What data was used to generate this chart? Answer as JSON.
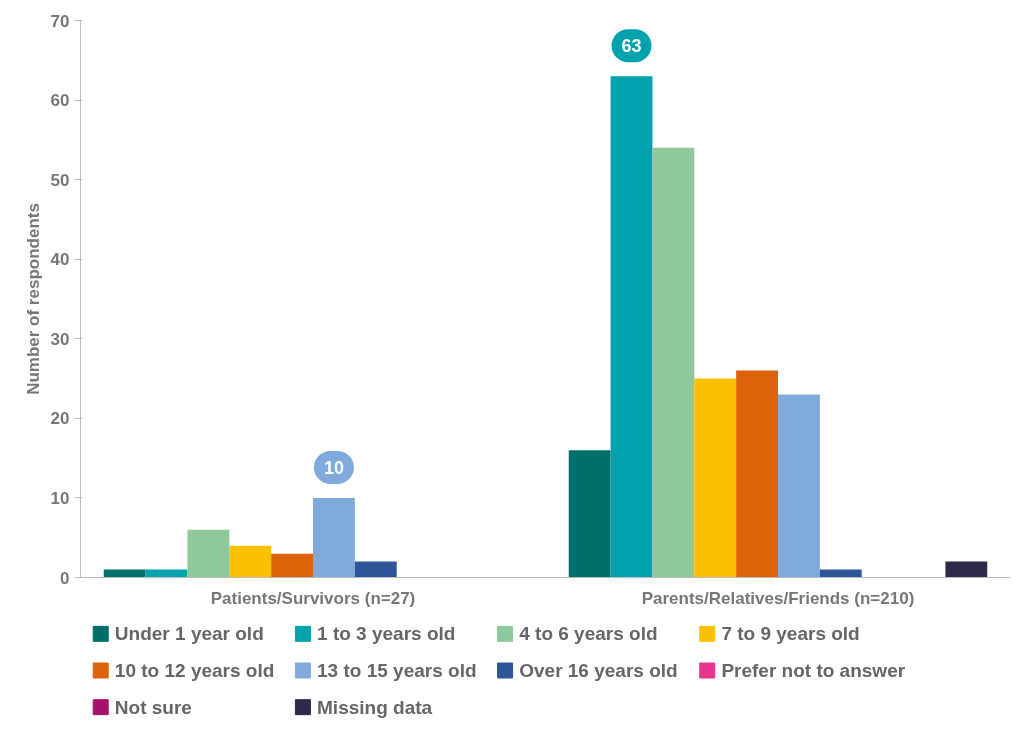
{
  "chart_data": {
    "type": "bar",
    "ylabel": "Number of respondents",
    "categories": [
      "Patients/Survivors (n=27)",
      "Parents/Relatives/Friends (n=210)"
    ],
    "ylim": [
      0,
      70
    ],
    "yticks": [
      0,
      10,
      20,
      30,
      40,
      50,
      60,
      70
    ],
    "grid": false,
    "legend": "bottom",
    "series": [
      {
        "name": "Under 1 year old",
        "color": "#006e6a",
        "values": [
          1,
          16
        ]
      },
      {
        "name": "1 to 3 years old",
        "color": "#00a3ad",
        "values": [
          1,
          63
        ],
        "value_labels": [
          null,
          "63"
        ]
      },
      {
        "name": "4 to 6 years old",
        "color": "#8fc99b",
        "values": [
          6,
          54
        ]
      },
      {
        "name": "7 to 9 years old",
        "color": "#fbc100",
        "values": [
          4,
          25
        ]
      },
      {
        "name": "10 to 12 years old",
        "color": "#dd6209",
        "values": [
          3,
          26
        ]
      },
      {
        "name": "13 to 15 years old",
        "color": "#7faadb",
        "values": [
          10,
          23
        ],
        "value_labels": [
          "10",
          null
        ]
      },
      {
        "name": "Over 16 years old",
        "color": "#2e5597",
        "values": [
          2,
          1
        ]
      },
      {
        "name": "Prefer not to answer",
        "color": "#e8368f",
        "values": [
          0,
          0
        ]
      },
      {
        "name": "Not sure",
        "color": "#a5126b",
        "values": [
          0,
          0
        ]
      },
      {
        "name": "Missing data",
        "color": "#2d2a4a",
        "values": [
          0,
          2
        ]
      }
    ]
  }
}
